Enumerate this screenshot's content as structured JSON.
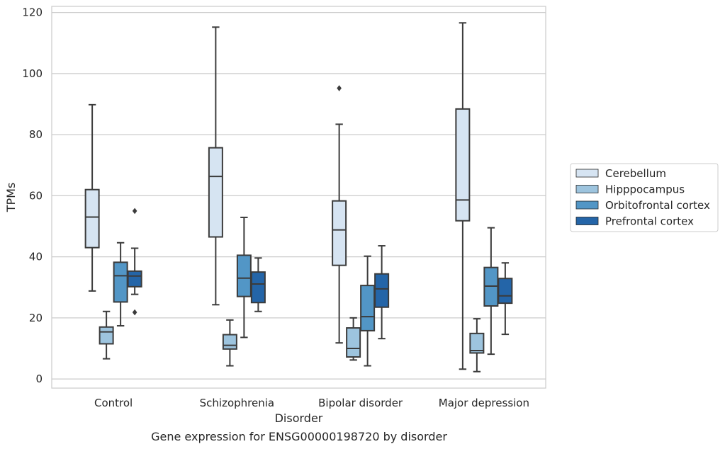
{
  "chart_data": {
    "type": "box",
    "caption": "Gene expression for ENSG00000198720 by disorder",
    "xlabel": "Disorder",
    "ylabel": "TPMs",
    "ylim": [
      -3,
      122
    ],
    "yticks": [
      0,
      20,
      40,
      60,
      80,
      100,
      120
    ],
    "grid": true,
    "legend_position": "right",
    "categories": [
      "Control",
      "Schizophrenia",
      "Bipolar disorder",
      "Major depression"
    ],
    "series": [
      {
        "name": "Cerebellum",
        "color": "#d6e4f2",
        "boxes": [
          {
            "whisker_low": 28.8,
            "q1": 43.0,
            "median": 53.0,
            "q3": 62.0,
            "whisker_high": 89.8,
            "outliers": []
          },
          {
            "whisker_low": 24.3,
            "q1": 46.5,
            "median": 66.3,
            "q3": 75.7,
            "whisker_high": 115.2,
            "outliers": []
          },
          {
            "whisker_low": 11.8,
            "q1": 37.2,
            "median": 48.8,
            "q3": 58.3,
            "whisker_high": 83.4,
            "outliers": [
              95.2
            ]
          },
          {
            "whisker_low": 3.2,
            "q1": 51.8,
            "median": 58.6,
            "q3": 88.4,
            "whisker_high": 116.6,
            "outliers": []
          }
        ]
      },
      {
        "name": "Hipppocampus",
        "color": "#9dc4de",
        "boxes": [
          {
            "whisker_low": 6.6,
            "q1": 11.5,
            "median": 15.4,
            "q3": 17.0,
            "whisker_high": 22.1,
            "outliers": []
          },
          {
            "whisker_low": 4.3,
            "q1": 9.8,
            "median": 11.0,
            "q3": 14.5,
            "whisker_high": 19.3,
            "outliers": []
          },
          {
            "whisker_low": 6.2,
            "q1": 7.2,
            "median": 10.0,
            "q3": 16.7,
            "whisker_high": 20.0,
            "outliers": []
          },
          {
            "whisker_low": 2.4,
            "q1": 8.5,
            "median": 9.3,
            "q3": 14.9,
            "whisker_high": 19.7,
            "outliers": []
          }
        ]
      },
      {
        "name": "Orbitofrontal cortex",
        "color": "#5296c6",
        "boxes": [
          {
            "whisker_low": 17.4,
            "q1": 25.2,
            "median": 33.8,
            "q3": 38.2,
            "whisker_high": 44.6,
            "outliers": []
          },
          {
            "whisker_low": 13.6,
            "q1": 27.0,
            "median": 33.0,
            "q3": 40.5,
            "whisker_high": 52.9,
            "outliers": []
          },
          {
            "whisker_low": 4.3,
            "q1": 15.8,
            "median": 20.4,
            "q3": 30.6,
            "whisker_high": 40.2,
            "outliers": []
          },
          {
            "whisker_low": 8.1,
            "q1": 23.9,
            "median": 30.4,
            "q3": 36.5,
            "whisker_high": 49.5,
            "outliers": []
          }
        ]
      },
      {
        "name": "Prefrontal cortex",
        "color": "#2465a8",
        "boxes": [
          {
            "whisker_low": 27.7,
            "q1": 30.2,
            "median": 33.7,
            "q3": 35.3,
            "whisker_high": 42.8,
            "outliers": [
              21.8,
              55.0
            ]
          },
          {
            "whisker_low": 22.1,
            "q1": 25.0,
            "median": 31.1,
            "q3": 35.0,
            "whisker_high": 39.6,
            "outliers": []
          },
          {
            "whisker_low": 13.2,
            "q1": 23.5,
            "median": 29.5,
            "q3": 34.4,
            "whisker_high": 43.6,
            "outliers": []
          },
          {
            "whisker_low": 14.6,
            "q1": 24.8,
            "median": 27.2,
            "q3": 32.9,
            "whisker_high": 38.0,
            "outliers": []
          }
        ]
      }
    ]
  }
}
